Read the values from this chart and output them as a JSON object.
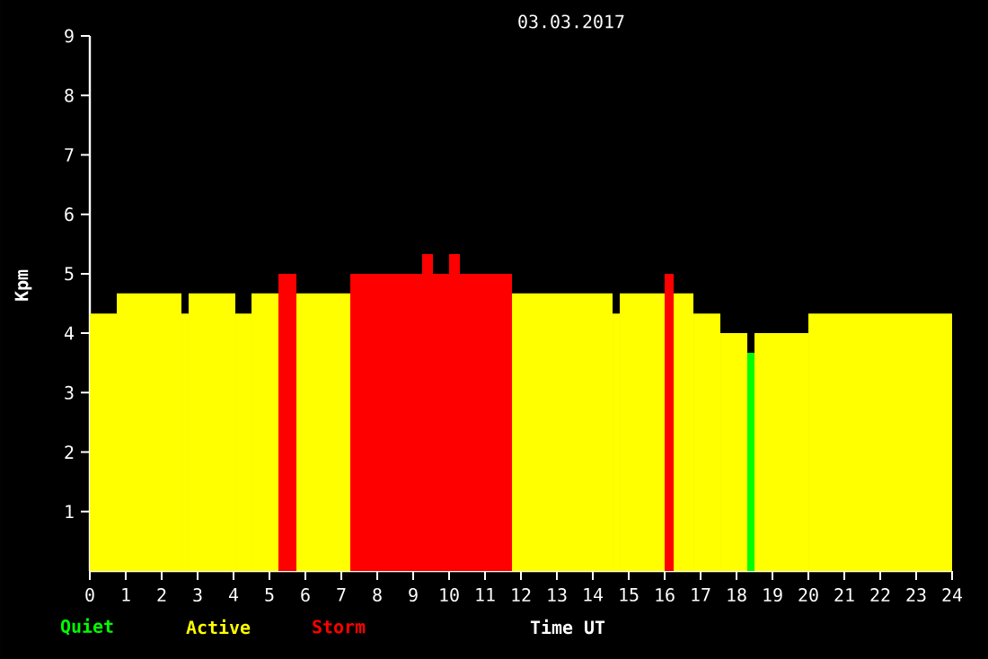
{
  "chart_data": {
    "type": "histogram",
    "title": "03.03.2017",
    "xlabel": "Time UT",
    "ylabel": "Kpm",
    "bins": [
      0,
      0.75,
      2.55,
      2.75,
      4.05,
      4.5,
      5.25,
      5.75,
      7.25,
      9.25,
      9.55,
      10,
      10.3,
      11.75,
      14.55,
      14.75,
      16,
      16.25,
      16.8,
      17.55,
      18.3,
      18.5,
      20,
      24
    ],
    "series": [
      {
        "name": "Quiet",
        "color": "#00ff00",
        "values": [
          null,
          null,
          null,
          null,
          null,
          null,
          null,
          null,
          null,
          null,
          null,
          null,
          null,
          null,
          null,
          null,
          null,
          null,
          null,
          null,
          3.67,
          null,
          null
        ]
      },
      {
        "name": "Active",
        "color": "#ffff00",
        "values": [
          4.33,
          4.67,
          4.33,
          4.67,
          4.33,
          4.67,
          null,
          4.67,
          null,
          null,
          null,
          null,
          null,
          4.67,
          4.33,
          4.67,
          null,
          4.67,
          4.33,
          4.0,
          null,
          4.0,
          4.33
        ]
      },
      {
        "name": "Storm",
        "color": "#ff0000",
        "values": [
          null,
          null,
          null,
          null,
          null,
          null,
          5.0,
          null,
          5.0,
          5.33,
          5.0,
          5.33,
          5.0,
          null,
          null,
          null,
          5.0,
          null,
          null,
          null,
          null,
          null,
          null
        ]
      }
    ],
    "xlim": [
      0,
      24
    ],
    "xticks": [
      0,
      1,
      2,
      3,
      4,
      5,
      6,
      7,
      8,
      9,
      10,
      11,
      12,
      13,
      14,
      15,
      16,
      17,
      18,
      19,
      20,
      21,
      22,
      23,
      24
    ],
    "ylim": [
      0,
      9
    ],
    "yticks": [
      1,
      2,
      3,
      4,
      5,
      6,
      7,
      8,
      9
    ],
    "legend": "bottom left"
  }
}
